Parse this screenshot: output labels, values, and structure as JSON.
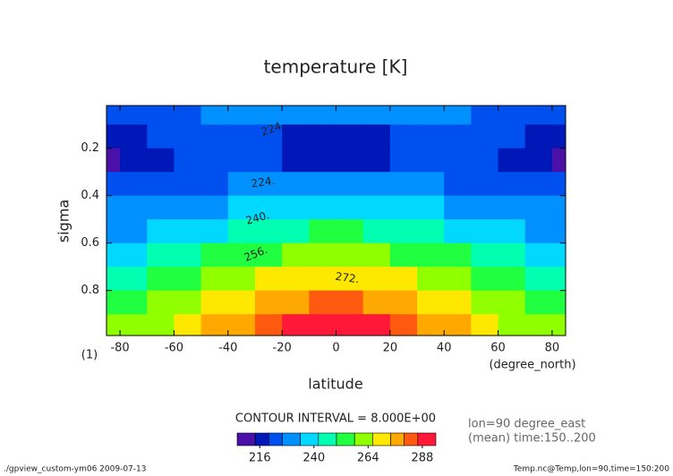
{
  "chart_data": {
    "type": "contour",
    "title": "temperature [K]",
    "x_label": "latitude",
    "x_unit": "(degree_north)",
    "y_label": "sigma",
    "y_unit": "(1)",
    "x": [
      -85,
      -75,
      -65,
      -55,
      -45,
      -35,
      -25,
      -15,
      -5,
      5,
      15,
      25,
      35,
      45,
      55,
      65,
      75,
      85
    ],
    "y": [
      0.05,
      0.15,
      0.25,
      0.35,
      0.45,
      0.55,
      0.65,
      0.75,
      0.85,
      0.95
    ],
    "z": [
      [
        221,
        222,
        223,
        225,
        226,
        227,
        227,
        226,
        226,
        226,
        226,
        227,
        227,
        226,
        225,
        223,
        222,
        221
      ],
      [
        218,
        219,
        221,
        223,
        224,
        223,
        221,
        219,
        218,
        218,
        219,
        221,
        223,
        224,
        223,
        221,
        219,
        218
      ],
      [
        211,
        214,
        218,
        220,
        221,
        221,
        220,
        219,
        219,
        219,
        219,
        220,
        221,
        221,
        220,
        218,
        214,
        211
      ],
      [
        221,
        221,
        222,
        223,
        224,
        226,
        227,
        228,
        228,
        228,
        228,
        227,
        226,
        224,
        223,
        222,
        221,
        221
      ],
      [
        226,
        227,
        229,
        231,
        233,
        235,
        237,
        239,
        240,
        240,
        239,
        237,
        235,
        233,
        231,
        229,
        227,
        226
      ],
      [
        232,
        233,
        235,
        238,
        241,
        244,
        247,
        249,
        250,
        250,
        249,
        247,
        244,
        241,
        238,
        235,
        233,
        232
      ],
      [
        239,
        240,
        243,
        246,
        250,
        253,
        256,
        259,
        260,
        260,
        259,
        256,
        253,
        250,
        246,
        243,
        240,
        239
      ],
      [
        246,
        248,
        250,
        254,
        258,
        262,
        266,
        268,
        270,
        270,
        268,
        266,
        262,
        258,
        254,
        250,
        248,
        246
      ],
      [
        253,
        255,
        258,
        262,
        267,
        271,
        275,
        278,
        280,
        280,
        278,
        275,
        271,
        267,
        262,
        258,
        255,
        253
      ],
      [
        259,
        261,
        264,
        269,
        274,
        279,
        284,
        287,
        289,
        289,
        287,
        284,
        279,
        274,
        269,
        264,
        261,
        259
      ]
    ],
    "xlim": [
      -85,
      85
    ],
    "ylim": [
      0.99,
      0.02
    ],
    "xticks": [
      -80,
      -60,
      -40,
      -20,
      0,
      20,
      40,
      60,
      80
    ],
    "yticks": [
      0.2,
      0.4,
      0.6,
      0.8
    ],
    "shade_levels": [
      206,
      214,
      220,
      226,
      234,
      242,
      250,
      258,
      266,
      274,
      280,
      286,
      294
    ],
    "shade_colors": [
      "#4a10a8",
      "#0018b8",
      "#0050f0",
      "#0090ff",
      "#00d8ff",
      "#00ffb0",
      "#20ff40",
      "#90ff00",
      "#ffe800",
      "#ffa800",
      "#ff5a10",
      "#ff1838"
    ],
    "colorbar_ticks": [
      216,
      240,
      264,
      288
    ],
    "contour_labels": [
      "224.",
      "224.",
      "240.",
      "256.",
      "272."
    ],
    "contour_interval": "CONTOUR INTERVAL = 8.000E+00",
    "notes": [
      "lon=90 degree_east",
      "(mean) time:150..200"
    ],
    "footer_left": "./gpview_custom-ym06  2009-07-13",
    "footer_right": "Temp.nc@Temp,lon=90,time=150:200"
  }
}
